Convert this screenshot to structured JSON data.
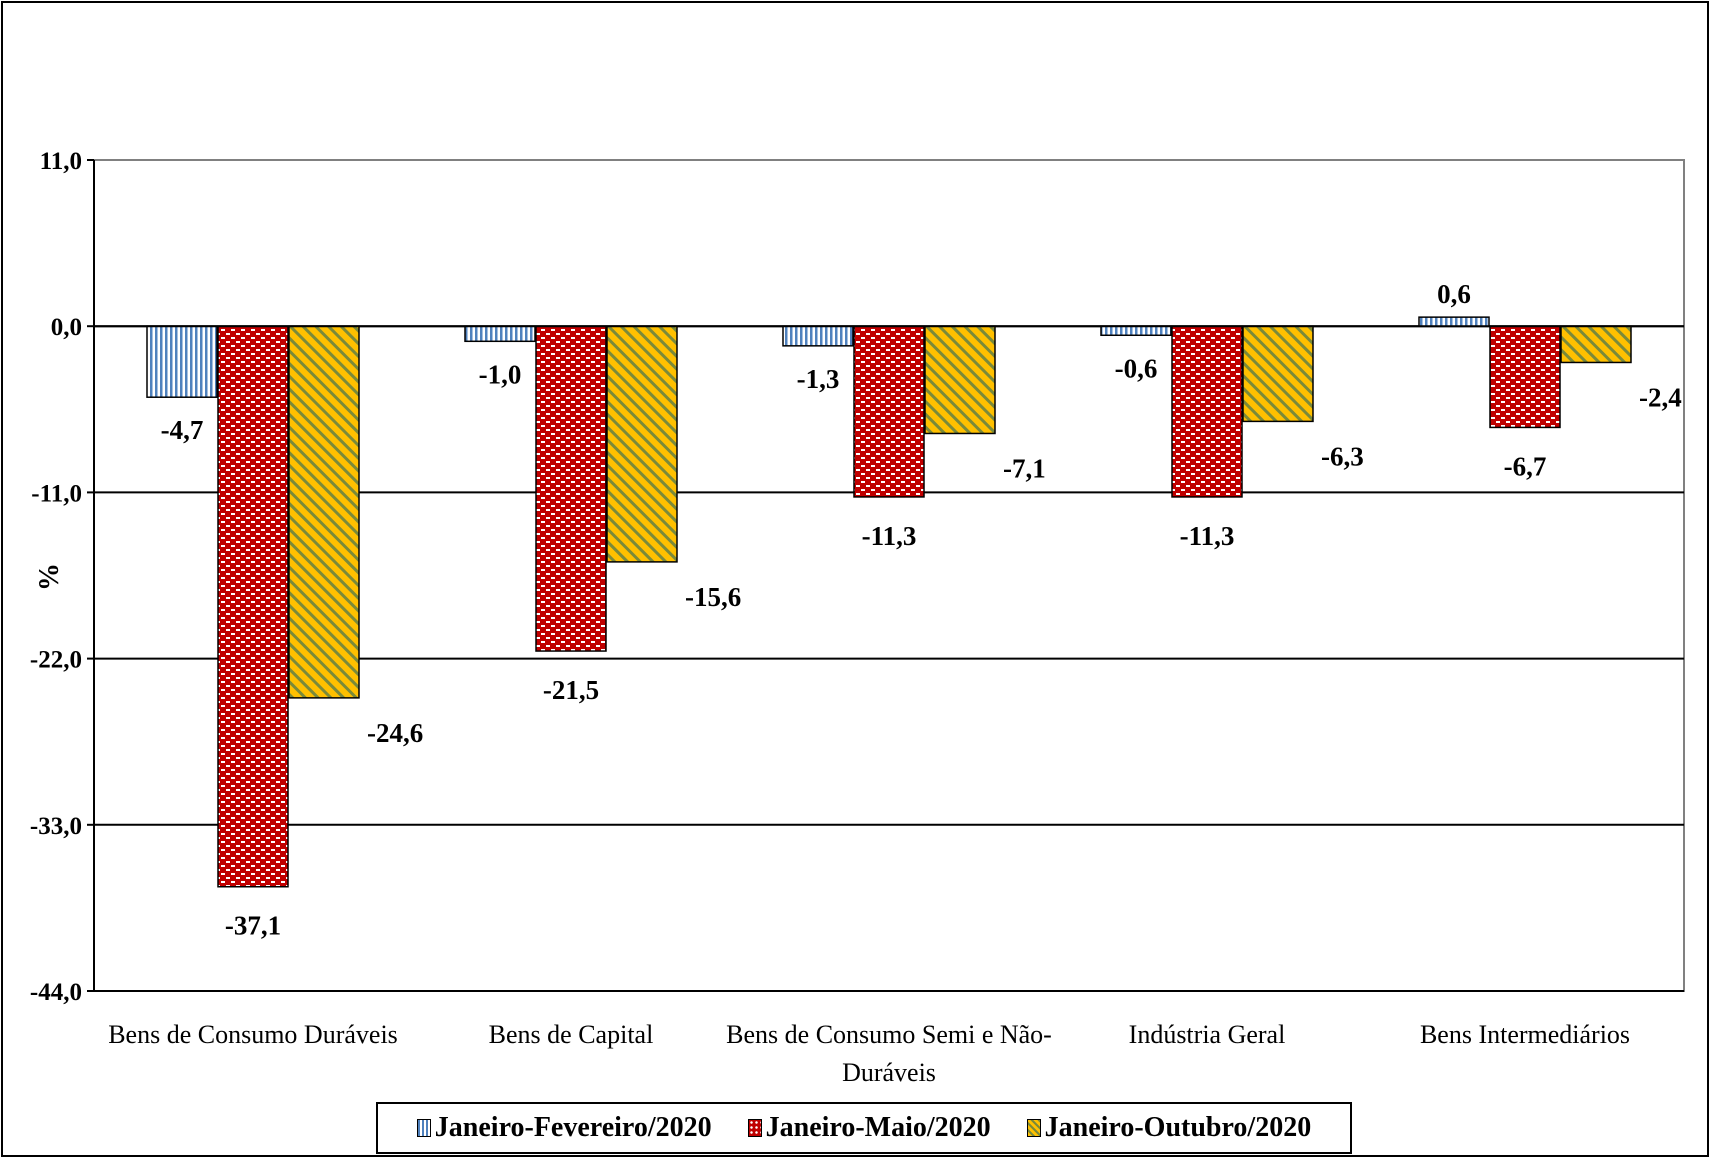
{
  "chart_data": {
    "type": "bar",
    "title": "",
    "xlabel": "",
    "ylabel": "%",
    "ylim": [
      -44.0,
      11.0
    ],
    "yticks": [
      "11,0",
      "0,0",
      "-11,0",
      "-22,0",
      "-33,0",
      "-44,0"
    ],
    "ytick_values": [
      11,
      0,
      -11,
      -22,
      -33,
      -44
    ],
    "grid": true,
    "legend_position": "bottom",
    "categories": [
      [
        "Bens de Consumo Duráveis"
      ],
      [
        "Bens de Capital"
      ],
      [
        "Bens de Consumo Semi e Não-",
        "Duráveis"
      ],
      [
        "Indústria Geral"
      ],
      [
        "Bens Intermediários"
      ]
    ],
    "series": [
      {
        "name": "Janeiro-Fevereiro/2020",
        "color": "#4f81bd",
        "pattern": "vertical-stripes",
        "values": [
          -4.7,
          -1.0,
          -1.3,
          -0.6,
          0.6
        ],
        "labels": [
          "-4,7",
          "-1,0",
          "-1,3",
          "-0,6",
          "0,6"
        ]
      },
      {
        "name": "Janeiro-Maio/2020",
        "color": "#c00000",
        "pattern": "dots",
        "values": [
          -37.1,
          -21.5,
          -11.3,
          -11.3,
          -6.7
        ],
        "labels": [
          "-37,1",
          "-21,5",
          "-11,3",
          "-11,3",
          "-6,7"
        ]
      },
      {
        "name": "Janeiro-Outubro/2020",
        "color": "#ffc000",
        "pattern": "diagonal-stripes",
        "values": [
          -24.6,
          -15.6,
          -7.1,
          -6.3,
          -2.4
        ],
        "labels": [
          "-24,6",
          "-15,6",
          "-7,1",
          "-6,3",
          "-2,4"
        ]
      }
    ]
  }
}
